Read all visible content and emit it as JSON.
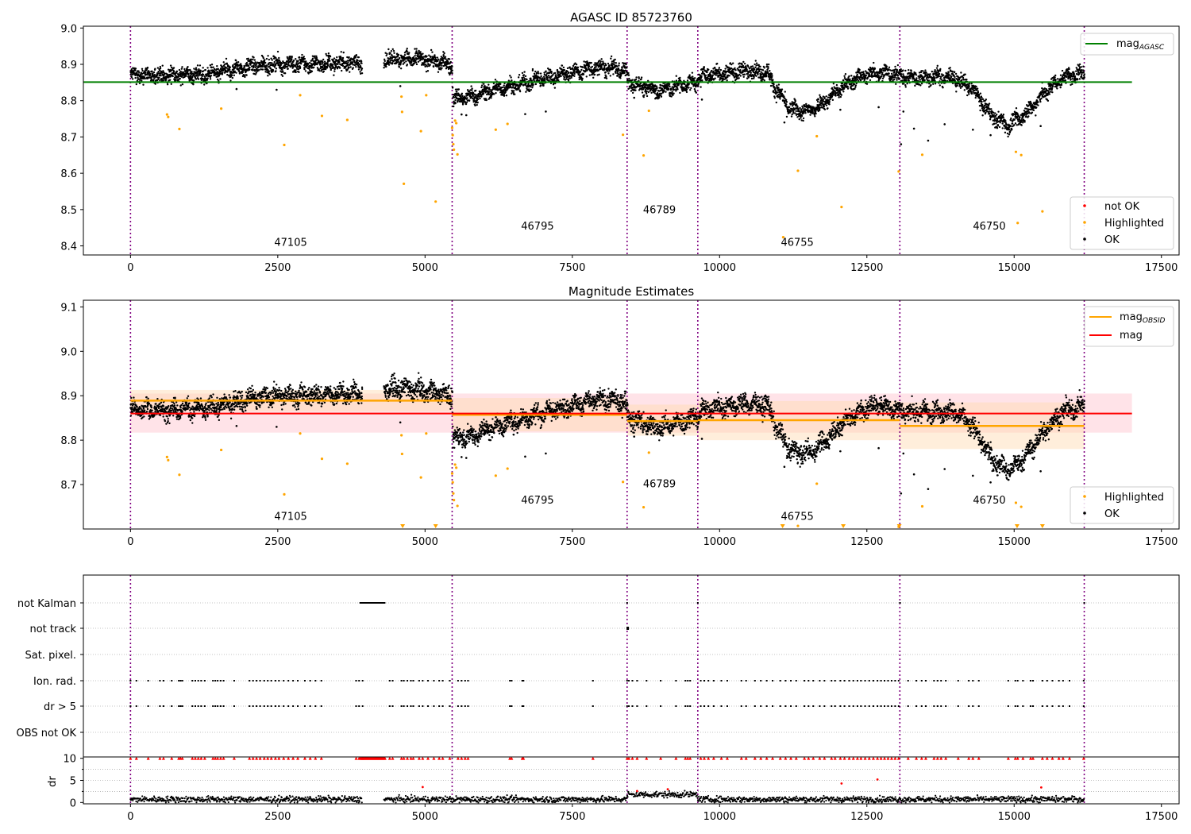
{
  "figure": {
    "background": "#ffffff"
  },
  "colors": {
    "ok": "#000000",
    "highlighted": "#ffa500",
    "not_ok": "#ff0000",
    "mag_agasc": "#008000",
    "mag_obsid": "#ffa500",
    "mag": "#ff0000",
    "band_mag": "#ffc0cb",
    "band_obsid": "#ffdab0",
    "obs_boundary": "#800080",
    "grid": "#b0b0b0"
  },
  "chart_data": [
    {
      "type": "scatter",
      "title": "AGASC ID 85723760",
      "xlim": [
        -800,
        17800
      ],
      "ylim": [
        8.375,
        9.005
      ],
      "xticks": [
        0,
        2500,
        5000,
        7500,
        10000,
        12500,
        15000,
        17500
      ],
      "xtick_labels": [
        "0",
        "2500",
        "5000",
        "7500",
        "10000",
        "12500",
        "15000",
        "17500"
      ],
      "yticks": [
        8.4,
        8.5,
        8.6,
        8.7,
        8.8,
        8.9,
        9.0
      ],
      "ytick_labels": [
        "8.4",
        "8.5",
        "8.6",
        "8.7",
        "8.8",
        "8.9",
        "9.0"
      ],
      "grid": false,
      "obs_boundaries": [
        0,
        5460,
        8430,
        9630,
        13060,
        16190
      ],
      "obs_labels": [
        {
          "text": "47105",
          "x": 2440,
          "y": 8.4
        },
        {
          "text": "46795",
          "x": 6630,
          "y": 8.445
        },
        {
          "text": "46789",
          "x": 8700,
          "y": 8.49
        },
        {
          "text": "46755",
          "x": 11040,
          "y": 8.4
        },
        {
          "text": "46750",
          "x": 14300,
          "y": 8.445
        }
      ],
      "hlines": [
        {
          "name": "mag_AGASC",
          "y": 8.851,
          "x": [
            -800,
            17000
          ],
          "color": "#008000"
        }
      ],
      "legend_top": {
        "placement": "top-right",
        "entries": [
          {
            "base": "mag",
            "sub": "AGASC",
            "color": "#008000"
          }
        ]
      },
      "legend_bottom": {
        "placement": "bottom-right",
        "entries": [
          {
            "label": "not OK",
            "color": "#ff0000"
          },
          {
            "label": "Highlighted",
            "color": "#ffa500"
          },
          {
            "label": "OK",
            "color": "#000000"
          }
        ]
      },
      "highlighted_points": [
        [
          620,
          8.762
        ],
        [
          640,
          8.755
        ],
        [
          830,
          8.722
        ],
        [
          1540,
          8.778
        ],
        [
          2610,
          8.678
        ],
        [
          2880,
          8.815
        ],
        [
          3250,
          8.758
        ],
        [
          3680,
          8.747
        ],
        [
          4600,
          8.811
        ],
        [
          4610,
          8.769
        ],
        [
          4640,
          8.571
        ],
        [
          4930,
          8.716
        ],
        [
          5020,
          8.815
        ],
        [
          5180,
          8.522
        ],
        [
          5460,
          8.725
        ],
        [
          5470,
          8.705
        ],
        [
          5480,
          8.68
        ],
        [
          5490,
          8.665
        ],
        [
          5510,
          8.745
        ],
        [
          5530,
          8.738
        ],
        [
          5550,
          8.652
        ],
        [
          6200,
          8.72
        ],
        [
          6400,
          8.736
        ],
        [
          8360,
          8.706
        ],
        [
          8710,
          8.649
        ],
        [
          8800,
          8.772
        ],
        [
          11080,
          8.424
        ],
        [
          11330,
          8.607
        ],
        [
          11650,
          8.702
        ],
        [
          12070,
          8.507
        ],
        [
          13040,
          8.605
        ],
        [
          13440,
          8.651
        ],
        [
          15030,
          8.659
        ],
        [
          15060,
          8.463
        ],
        [
          15120,
          8.65
        ],
        [
          15480,
          8.495
        ]
      ],
      "ok_trend": [
        [
          0,
          8.87
        ],
        [
          500,
          8.868
        ],
        [
          900,
          8.872
        ],
        [
          1300,
          8.87
        ],
        [
          1700,
          8.885
        ],
        [
          2100,
          8.895
        ],
        [
          2500,
          8.9
        ],
        [
          3000,
          8.9
        ],
        [
          3500,
          8.903
        ],
        [
          3900,
          8.905
        ],
        [
          4300,
          8.915
        ],
        [
          4700,
          8.915
        ],
        [
          5000,
          8.912
        ],
        [
          5300,
          8.905
        ],
        [
          5460,
          8.895
        ],
        [
          5470,
          8.805
        ],
        [
          5800,
          8.81
        ],
        [
          6200,
          8.832
        ],
        [
          6600,
          8.845
        ],
        [
          7000,
          8.862
        ],
        [
          7400,
          8.875
        ],
        [
          7800,
          8.888
        ],
        [
          8100,
          8.89
        ],
        [
          8400,
          8.885
        ],
        [
          8450,
          8.85
        ],
        [
          8700,
          8.838
        ],
        [
          9000,
          8.828
        ],
        [
          9300,
          8.84
        ],
        [
          9630,
          8.852
        ],
        [
          9700,
          8.868
        ],
        [
          10000,
          8.875
        ],
        [
          10400,
          8.882
        ],
        [
          10800,
          8.88
        ],
        [
          11000,
          8.82
        ],
        [
          11200,
          8.775
        ],
        [
          11500,
          8.77
        ],
        [
          11800,
          8.8
        ],
        [
          12100,
          8.84
        ],
        [
          12400,
          8.868
        ],
        [
          12700,
          8.88
        ],
        [
          13060,
          8.868
        ],
        [
          13300,
          8.862
        ],
        [
          13700,
          8.865
        ],
        [
          14000,
          8.862
        ],
        [
          14300,
          8.83
        ],
        [
          14600,
          8.76
        ],
        [
          14900,
          8.73
        ],
        [
          15200,
          8.765
        ],
        [
          15500,
          8.82
        ],
        [
          15800,
          8.862
        ],
        [
          16190,
          8.878
        ]
      ],
      "ok_gaps": [
        [
          3930,
          4300
        ]
      ],
      "ok_noise": 0.013,
      "ok_outliers": [
        [
          1800,
          8.832
        ],
        [
          2480,
          8.83
        ],
        [
          4580,
          8.84
        ],
        [
          5620,
          8.762
        ],
        [
          5700,
          8.76
        ],
        [
          6700,
          8.763
        ],
        [
          7050,
          8.77
        ],
        [
          8550,
          8.808
        ],
        [
          9700,
          8.803
        ],
        [
          11100,
          8.74
        ],
        [
          12050,
          8.775
        ],
        [
          12700,
          8.782
        ],
        [
          13080,
          8.68
        ],
        [
          13120,
          8.77
        ],
        [
          13300,
          8.723
        ],
        [
          13540,
          8.69
        ],
        [
          13820,
          8.735
        ],
        [
          14300,
          8.72
        ],
        [
          14600,
          8.705
        ],
        [
          15450,
          8.73
        ]
      ]
    },
    {
      "type": "scatter",
      "title": "Magnitude Estimates",
      "xlim": [
        -800,
        17800
      ],
      "ylim": [
        8.6,
        9.115
      ],
      "xticks": [
        0,
        2500,
        5000,
        7500,
        10000,
        12500,
        15000,
        17500
      ],
      "xtick_labels": [
        "0",
        "2500",
        "5000",
        "7500",
        "10000",
        "12500",
        "15000",
        "17500"
      ],
      "yticks": [
        8.7,
        8.8,
        8.9,
        9.0,
        9.1
      ],
      "ytick_labels": [
        "8.7",
        "8.8",
        "8.9",
        "9.0",
        "9.1"
      ],
      "grid": false,
      "obs_boundaries": [
        0,
        5460,
        8430,
        9630,
        13060,
        16190
      ],
      "obs_labels": [
        {
          "text": "47105",
          "x": 2440,
          "y": 8.621
        },
        {
          "text": "46795",
          "x": 6630,
          "y": 8.657
        },
        {
          "text": "46789",
          "x": 8700,
          "y": 8.694
        },
        {
          "text": "46755",
          "x": 11040,
          "y": 8.621
        },
        {
          "text": "46750",
          "x": 14300,
          "y": 8.657
        }
      ],
      "mag": {
        "name": "mag",
        "y": 8.86,
        "band": [
          8.817,
          8.905
        ],
        "x": [
          0,
          17000
        ],
        "color": "#ff0000"
      },
      "mag_obsid": [
        {
          "x": [
            0,
            5460
          ],
          "y": 8.889,
          "band": [
            8.865,
            8.913
          ]
        },
        {
          "x": [
            5460,
            8430
          ],
          "y": 8.857,
          "band": [
            8.82,
            8.895
          ]
        },
        {
          "x": [
            8430,
            9630
          ],
          "y": 8.843,
          "band": [
            8.81,
            8.88
          ]
        },
        {
          "x": [
            9630,
            13060
          ],
          "y": 8.845,
          "band": [
            8.8,
            8.888
          ]
        },
        {
          "x": [
            13060,
            16190
          ],
          "y": 8.832,
          "band": [
            8.78,
            8.885
          ]
        }
      ],
      "legend_top": {
        "placement": "top-right",
        "entries": [
          {
            "base": "mag",
            "sub": "OBSID",
            "color": "#ffa500"
          },
          {
            "base": "mag",
            "sub": "",
            "color": "#ff0000"
          }
        ]
      },
      "legend_bottom": {
        "placement": "bottom-right",
        "entries": [
          {
            "label": "Highlighted",
            "color": "#ffa500"
          },
          {
            "label": "OK",
            "color": "#000000"
          }
        ]
      },
      "offscale_markers": [
        4620,
        5180,
        11070,
        12100,
        13050,
        15050,
        15480
      ]
    },
    {
      "type": "scatter",
      "title": "",
      "xlim": [
        -800,
        17800
      ],
      "xticks": [
        0,
        2500,
        5000,
        7500,
        10000,
        12500,
        15000,
        17500
      ],
      "xtick_labels": [
        "0",
        "2500",
        "5000",
        "7500",
        "10000",
        "12500",
        "15000",
        "17500"
      ],
      "obs_boundaries": [
        0,
        5460,
        8430,
        9630,
        13060,
        16190
      ],
      "flag_rows": [
        "not Kalman",
        "not track",
        "Sat. pixel.",
        "Ion. rad.",
        "dr > 5",
        "OBS not OK"
      ],
      "not_kalman_x": [
        [
          3900,
          4320
        ],
        [
          8430,
          8435
        ],
        [
          9630,
          9632
        ],
        [
          13062,
          13064
        ],
        [
          16190,
          16192
        ]
      ],
      "not_track_x": [
        8420,
        8440
      ],
      "flag_x": [
        0,
        100,
        300,
        500,
        560,
        700,
        820,
        850,
        880,
        1050,
        1100,
        1150,
        1200,
        1260,
        1400,
        1440,
        1480,
        1530,
        1580,
        1760,
        2020,
        2080,
        2140,
        2200,
        2270,
        2330,
        2390,
        2460,
        2520,
        2600,
        2680,
        2760,
        2840,
        2960,
        3050,
        3140,
        3240,
        3830,
        3880,
        3940,
        4400,
        4450,
        4600,
        4640,
        4700,
        4760,
        4800,
        4900,
        4960,
        5050,
        5150,
        5240,
        5300,
        5420,
        5560,
        5620,
        5680,
        5730,
        6440,
        6470,
        6650,
        6670,
        7850,
        8430,
        8460,
        8520,
        8600,
        8760,
        9000,
        9260,
        9420,
        9460,
        9500,
        9680,
        9740,
        9810,
        9900,
        10030,
        10130,
        10370,
        10450,
        10600,
        10700,
        10800,
        10900,
        11030,
        11120,
        11210,
        11300,
        11440,
        11510,
        11590,
        11700,
        11780,
        11900,
        11960,
        12050,
        12120,
        12200,
        12270,
        12340,
        12400,
        12470,
        12540,
        12610,
        12680,
        12740,
        12800,
        12860,
        12920,
        12980,
        13040,
        13200,
        13340,
        13430,
        13500,
        13640,
        13700,
        13760,
        13840,
        14050,
        14230,
        14300,
        14400,
        14900,
        15020,
        15060,
        15150,
        15280,
        15320,
        15480,
        15560,
        15650,
        15760,
        15830,
        15940,
        16180
      ],
      "dr_panel": {
        "ylabel": "dr",
        "ylim": [
          -0.3,
          10.3
        ],
        "yticks": [
          0,
          5,
          10
        ],
        "ytick_labels": [
          "0",
          "5",
          "10"
        ],
        "cap": 10,
        "base_level": 0.7,
        "bump": {
          "x": [
            8430,
            9630
          ],
          "level": 1.8
        },
        "scattered_red": [
          [
            4960,
            3.5
          ],
          [
            8600,
            2.6
          ],
          [
            9120,
            3.0
          ],
          [
            12070,
            4.3
          ],
          [
            12680,
            5.2
          ],
          [
            15460,
            3.4
          ]
        ]
      }
    }
  ]
}
